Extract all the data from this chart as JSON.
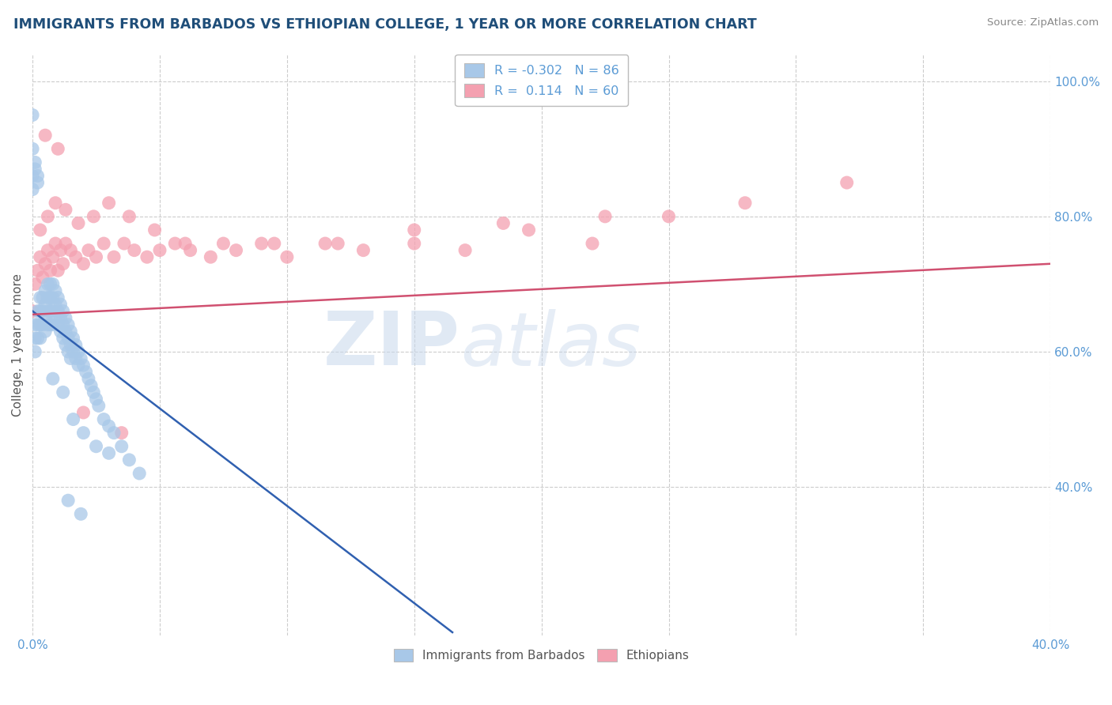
{
  "title": "IMMIGRANTS FROM BARBADOS VS ETHIOPIAN COLLEGE, 1 YEAR OR MORE CORRELATION CHART",
  "source": "Source: ZipAtlas.com",
  "ylabel": "College, 1 year or more",
  "xlim": [
    0.0,
    0.4
  ],
  "ylim": [
    0.18,
    1.04
  ],
  "right_yticks": [
    0.4,
    0.6,
    0.8,
    1.0
  ],
  "right_yticklabels": [
    "40.0%",
    "60.0%",
    "80.0%",
    "100.0%"
  ],
  "xtick_labels": [
    "0.0%",
    "",
    "",
    "",
    "",
    "",
    "",
    "",
    "40.0%"
  ],
  "legend_r1": "-0.302",
  "legend_n1": "86",
  "legend_r2": "0.114",
  "legend_n2": "60",
  "blue_color": "#A8C8E8",
  "pink_color": "#F4A0B0",
  "blue_line_color": "#3060B0",
  "pink_line_color": "#D05070",
  "watermark_zip": "ZIP",
  "watermark_atlas": "atlas",
  "background_color": "#FFFFFF",
  "grid_color": "#CCCCCC",
  "title_color": "#1F4E79",
  "axis_label_color": "#5B9BD5",
  "blue_scatter_x": [
    0.0,
    0.0,
    0.001,
    0.001,
    0.001,
    0.002,
    0.002,
    0.002,
    0.003,
    0.003,
    0.003,
    0.003,
    0.004,
    0.004,
    0.004,
    0.005,
    0.005,
    0.005,
    0.005,
    0.006,
    0.006,
    0.006,
    0.006,
    0.007,
    0.007,
    0.007,
    0.007,
    0.008,
    0.008,
    0.008,
    0.008,
    0.009,
    0.009,
    0.009,
    0.01,
    0.01,
    0.01,
    0.011,
    0.011,
    0.011,
    0.012,
    0.012,
    0.012,
    0.013,
    0.013,
    0.013,
    0.014,
    0.014,
    0.014,
    0.015,
    0.015,
    0.015,
    0.016,
    0.016,
    0.017,
    0.017,
    0.018,
    0.018,
    0.019,
    0.02,
    0.021,
    0.022,
    0.023,
    0.024,
    0.025,
    0.026,
    0.028,
    0.03,
    0.032,
    0.035,
    0.038,
    0.042,
    0.0,
    0.0,
    0.001,
    0.001,
    0.002,
    0.002,
    0.008,
    0.012,
    0.016,
    0.02,
    0.025,
    0.03,
    0.014,
    0.019
  ],
  "blue_scatter_y": [
    0.95,
    0.9,
    0.64,
    0.62,
    0.6,
    0.66,
    0.64,
    0.62,
    0.68,
    0.66,
    0.64,
    0.62,
    0.68,
    0.66,
    0.64,
    0.69,
    0.67,
    0.65,
    0.63,
    0.7,
    0.68,
    0.66,
    0.64,
    0.7,
    0.68,
    0.66,
    0.64,
    0.7,
    0.68,
    0.66,
    0.64,
    0.69,
    0.67,
    0.65,
    0.68,
    0.66,
    0.64,
    0.67,
    0.65,
    0.63,
    0.66,
    0.64,
    0.62,
    0.65,
    0.63,
    0.61,
    0.64,
    0.62,
    0.6,
    0.63,
    0.61,
    0.59,
    0.62,
    0.6,
    0.61,
    0.59,
    0.6,
    0.58,
    0.59,
    0.58,
    0.57,
    0.56,
    0.55,
    0.54,
    0.53,
    0.52,
    0.5,
    0.49,
    0.48,
    0.46,
    0.44,
    0.42,
    0.84,
    0.86,
    0.87,
    0.88,
    0.86,
    0.85,
    0.56,
    0.54,
    0.5,
    0.48,
    0.46,
    0.45,
    0.38,
    0.36
  ],
  "pink_scatter_x": [
    0.0,
    0.001,
    0.002,
    0.003,
    0.004,
    0.005,
    0.006,
    0.007,
    0.008,
    0.009,
    0.01,
    0.011,
    0.012,
    0.013,
    0.015,
    0.017,
    0.02,
    0.022,
    0.025,
    0.028,
    0.032,
    0.036,
    0.04,
    0.045,
    0.05,
    0.056,
    0.062,
    0.07,
    0.08,
    0.09,
    0.1,
    0.115,
    0.13,
    0.15,
    0.17,
    0.195,
    0.22,
    0.25,
    0.28,
    0.32,
    0.003,
    0.006,
    0.009,
    0.013,
    0.018,
    0.024,
    0.03,
    0.038,
    0.048,
    0.06,
    0.075,
    0.095,
    0.12,
    0.15,
    0.185,
    0.225,
    0.005,
    0.01,
    0.02,
    0.035
  ],
  "pink_scatter_y": [
    0.66,
    0.7,
    0.72,
    0.74,
    0.71,
    0.73,
    0.75,
    0.72,
    0.74,
    0.76,
    0.72,
    0.75,
    0.73,
    0.76,
    0.75,
    0.74,
    0.73,
    0.75,
    0.74,
    0.76,
    0.74,
    0.76,
    0.75,
    0.74,
    0.75,
    0.76,
    0.75,
    0.74,
    0.75,
    0.76,
    0.74,
    0.76,
    0.75,
    0.76,
    0.75,
    0.78,
    0.76,
    0.8,
    0.82,
    0.85,
    0.78,
    0.8,
    0.82,
    0.81,
    0.79,
    0.8,
    0.82,
    0.8,
    0.78,
    0.76,
    0.76,
    0.76,
    0.76,
    0.78,
    0.79,
    0.8,
    0.92,
    0.9,
    0.51,
    0.48
  ],
  "blue_trend_x": [
    0.0,
    0.165
  ],
  "blue_trend_y": [
    0.66,
    0.185
  ],
  "pink_trend_x": [
    0.0,
    0.4
  ],
  "pink_trend_y": [
    0.655,
    0.73
  ]
}
